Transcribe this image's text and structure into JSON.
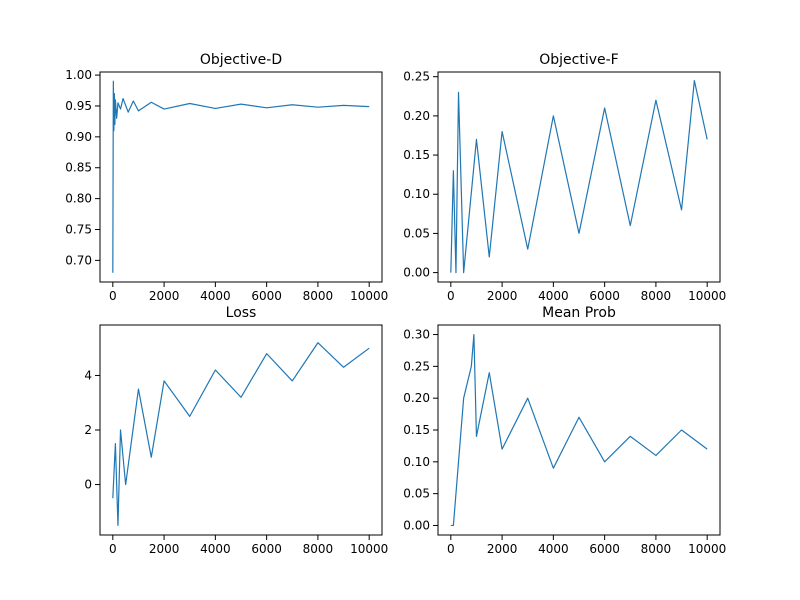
{
  "chart_data": [
    {
      "type": "line",
      "title": "Objective-D",
      "xlim": [
        -500,
        10500
      ],
      "ylim": [
        0.665,
        1.005
      ],
      "xticks": [
        0,
        2000,
        4000,
        6000,
        8000,
        10000
      ],
      "xtick_labels": [
        "0",
        "2000",
        "4000",
        "6000",
        "8000",
        "10000"
      ],
      "yticks": [
        0.7,
        0.75,
        0.8,
        0.85,
        0.9,
        0.95,
        1.0
      ],
      "ytick_labels": [
        "0.70",
        "0.75",
        "0.80",
        "0.85",
        "0.90",
        "0.95",
        "1.00"
      ],
      "color": "#1f77b4",
      "series": [
        {
          "name": "Objective-D",
          "x": [
            0,
            20,
            40,
            60,
            80,
            100,
            150,
            200,
            300,
            400,
            600,
            800,
            1000,
            1500,
            2000,
            3000,
            4000,
            5000,
            6000,
            7000,
            8000,
            9000,
            10000
          ],
          "y": [
            0.68,
            0.99,
            0.91,
            0.97,
            0.92,
            0.96,
            0.93,
            0.955,
            0.945,
            0.962,
            0.94,
            0.958,
            0.942,
            0.956,
            0.945,
            0.954,
            0.946,
            0.953,
            0.947,
            0.952,
            0.948,
            0.951,
            0.949
          ]
        }
      ]
    },
    {
      "type": "line",
      "title": "Objective-F",
      "xlim": [
        -500,
        10500
      ],
      "ylim": [
        -0.012,
        0.256
      ],
      "xticks": [
        0,
        2000,
        4000,
        6000,
        8000,
        10000
      ],
      "xtick_labels": [
        "0",
        "2000",
        "4000",
        "6000",
        "8000",
        "10000"
      ],
      "yticks": [
        0.0,
        0.05,
        0.1,
        0.15,
        0.2,
        0.25
      ],
      "ytick_labels": [
        "0.00",
        "0.05",
        "0.10",
        "0.15",
        "0.20",
        "0.25"
      ],
      "color": "#1f77b4",
      "series": [
        {
          "name": "Objective-F",
          "x": [
            0,
            100,
            200,
            300,
            500,
            1000,
            1500,
            2000,
            3000,
            4000,
            5000,
            6000,
            7000,
            8000,
            9000,
            9500,
            10000
          ],
          "y": [
            0.0,
            0.13,
            0.0,
            0.23,
            0.0,
            0.17,
            0.02,
            0.18,
            0.03,
            0.2,
            0.05,
            0.21,
            0.06,
            0.22,
            0.08,
            0.245,
            0.17
          ]
        }
      ]
    },
    {
      "type": "line",
      "title": "Loss",
      "xlim": [
        -500,
        10500
      ],
      "ylim": [
        -1.85,
        5.85
      ],
      "xticks": [
        0,
        2000,
        4000,
        6000,
        8000,
        10000
      ],
      "xtick_labels": [
        "0",
        "2000",
        "4000",
        "6000",
        "8000",
        "10000"
      ],
      "yticks": [
        0,
        2,
        4
      ],
      "ytick_labels": [
        "0",
        "2",
        "4"
      ],
      "color": "#1f77b4",
      "series": [
        {
          "name": "Loss",
          "x": [
            0,
            100,
            200,
            300,
            500,
            1000,
            1500,
            2000,
            3000,
            4000,
            5000,
            6000,
            7000,
            8000,
            9000,
            10000
          ],
          "y": [
            -0.5,
            1.5,
            -1.5,
            2.0,
            0.0,
            3.5,
            1.0,
            3.8,
            2.5,
            4.2,
            3.2,
            4.8,
            3.8,
            5.2,
            4.3,
            5.0
          ]
        }
      ]
    },
    {
      "type": "line",
      "title": "Mean Prob",
      "xlim": [
        -500,
        10500
      ],
      "ylim": [
        -0.015,
        0.315
      ],
      "xticks": [
        0,
        2000,
        4000,
        6000,
        8000,
        10000
      ],
      "xtick_labels": [
        "0",
        "2000",
        "4000",
        "6000",
        "8000",
        "10000"
      ],
      "yticks": [
        0.0,
        0.05,
        0.1,
        0.15,
        0.2,
        0.25,
        0.3
      ],
      "ytick_labels": [
        "0.00",
        "0.05",
        "0.10",
        "0.15",
        "0.20",
        "0.25",
        "0.30"
      ],
      "color": "#1f77b4",
      "series": [
        {
          "name": "Mean Prob",
          "x": [
            0,
            100,
            200,
            300,
            500,
            800,
            900,
            1000,
            1500,
            2000,
            3000,
            4000,
            5000,
            6000,
            7000,
            8000,
            9000,
            10000
          ],
          "y": [
            0.0,
            0.0,
            0.05,
            0.1,
            0.2,
            0.25,
            0.3,
            0.14,
            0.24,
            0.12,
            0.2,
            0.09,
            0.17,
            0.1,
            0.14,
            0.11,
            0.15,
            0.12
          ]
        }
      ]
    }
  ]
}
